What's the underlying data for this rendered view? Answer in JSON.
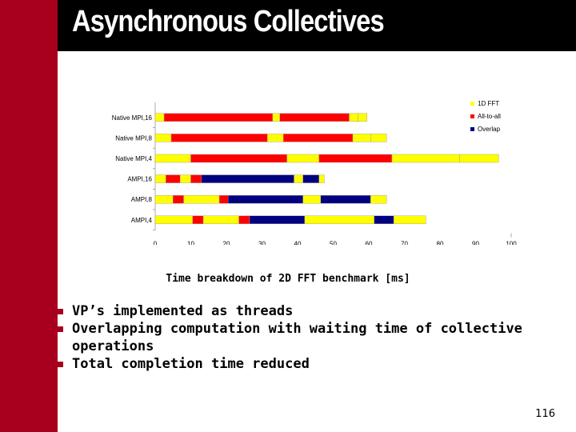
{
  "slide": {
    "title": "Asynchronous Collectives",
    "caption": "Time breakdown of 2D FFT benchmark [ms]",
    "bullets": [
      "VP’s implemented as threads",
      "Overlapping computation with waiting time of collective operations",
      "Total completion time reduced"
    ],
    "page_number": "116",
    "colors": {
      "left_bar": "#a8001c",
      "title_bar": "#000000",
      "bullet": "#a8001c"
    }
  },
  "chart_data": {
    "type": "bar",
    "orientation": "horizontal",
    "stacked": true,
    "categories": [
      "Native MPI,16",
      "Native MPI,8",
      "Native MPI,4",
      "AMPI,16",
      "AMPI,8",
      "AMPI,4"
    ],
    "xlim": [
      0,
      100
    ],
    "xticks": [
      0,
      10,
      20,
      30,
      40,
      50,
      60,
      70,
      80,
      90,
      100
    ],
    "legend": {
      "position": "right",
      "entries": [
        "1D FFT",
        "All-to-all",
        "Overlap"
      ]
    },
    "series_colors": {
      "1D FFT": "#ffff00",
      "All-to-all": "#ff0000",
      "Overlap": "#000080"
    },
    "segments": [
      [
        [
          "1D FFT",
          2.5
        ],
        [
          "All-to-all",
          30.5
        ],
        [
          "1D FFT",
          2
        ],
        [
          "All-to-all",
          19.5
        ],
        [
          "1D FFT",
          2.5
        ],
        [
          "1D FFT",
          2.5
        ]
      ],
      [
        [
          "1D FFT",
          4.5
        ],
        [
          "All-to-all",
          27
        ],
        [
          "1D FFT",
          4.5
        ],
        [
          "All-to-all",
          19.5
        ],
        [
          "1D FFT",
          5
        ],
        [
          "1D FFT",
          4.5
        ]
      ],
      [
        [
          "1D FFT",
          10
        ],
        [
          "All-to-all",
          27
        ],
        [
          "1D FFT",
          9
        ],
        [
          "All-to-all",
          20.5
        ],
        [
          "1D FFT",
          19
        ],
        [
          "1D FFT",
          11
        ]
      ],
      [
        [
          "1D FFT",
          3
        ],
        [
          "All-to-all",
          4
        ],
        [
          "1D FFT",
          3
        ],
        [
          "All-to-all",
          3
        ],
        [
          "Overlap",
          26
        ],
        [
          "1D FFT",
          2.5
        ],
        [
          "Overlap",
          4.5
        ],
        [
          "1D FFT",
          1.5
        ]
      ],
      [
        [
          "1D FFT",
          5
        ],
        [
          "All-to-all",
          3
        ],
        [
          "1D FFT",
          10
        ],
        [
          "All-to-all",
          2.5
        ],
        [
          "Overlap",
          21
        ],
        [
          "1D FFT",
          5
        ],
        [
          "Overlap",
          14
        ],
        [
          "1D FFT",
          4.5
        ]
      ],
      [
        [
          "1D FFT",
          10.5
        ],
        [
          "All-to-all",
          3
        ],
        [
          "1D FFT",
          10
        ],
        [
          "All-to-all",
          3
        ],
        [
          "Overlap",
          15.5
        ],
        [
          "1D FFT",
          19.5
        ],
        [
          "Overlap",
          5.5
        ],
        [
          "1D FFT",
          9
        ]
      ]
    ]
  }
}
